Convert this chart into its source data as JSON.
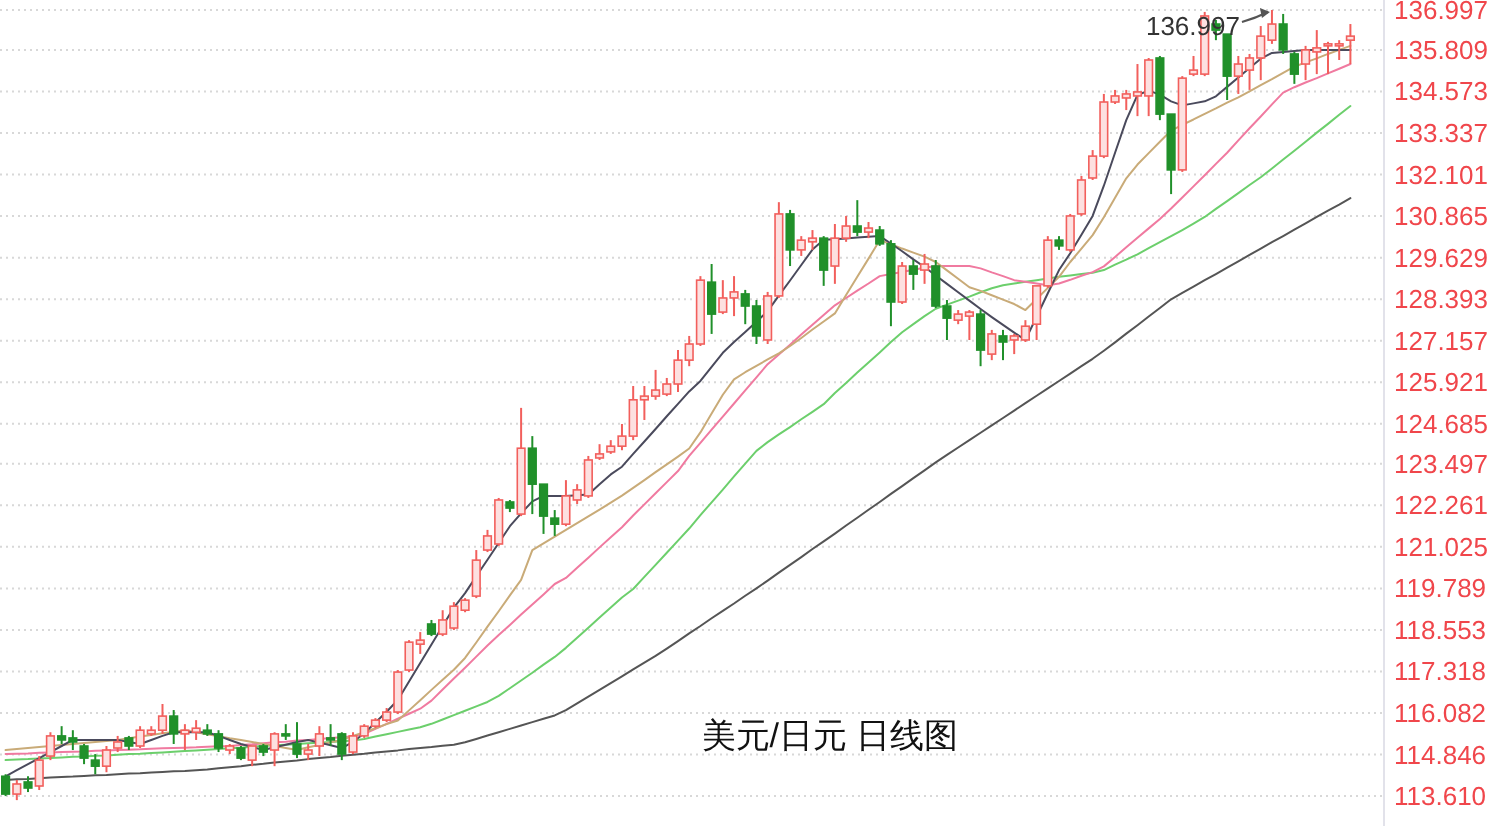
{
  "chart_data": {
    "type": "candlestick",
    "title": "美元/日元 日线图",
    "categories": [
      null,
      null,
      null,
      null,
      null,
      null,
      null,
      null,
      null,
      null,
      null,
      null,
      null,
      null,
      null,
      null,
      null,
      null,
      null,
      null,
      null,
      null,
      null,
      null,
      null,
      null,
      null,
      null,
      null,
      null,
      null,
      null,
      null,
      null,
      null,
      null,
      null,
      null,
      null,
      null,
      null,
      null,
      null,
      null,
      null,
      null,
      null,
      null,
      null,
      null,
      null,
      null,
      null,
      null,
      null,
      null,
      null,
      null,
      null,
      null,
      null,
      null,
      null,
      null,
      null,
      null,
      null,
      null,
      null,
      null,
      null,
      null,
      null,
      null,
      null,
      null,
      null,
      null,
      null,
      null,
      null,
      null,
      null,
      null,
      null,
      null,
      null,
      null,
      null,
      null,
      null,
      null,
      null,
      null,
      null,
      null,
      null,
      null,
      null,
      null,
      null,
      null,
      null,
      null,
      null,
      null,
      null,
      null,
      null,
      null,
      null,
      null,
      null,
      null,
      null,
      null,
      null,
      null,
      null,
      null,
      null
    ],
    "ohlc": [
      [
        114.2,
        114.26,
        113.61,
        113.67
      ],
      [
        113.67,
        114.09,
        113.49,
        113.97
      ],
      [
        114.03,
        114.2,
        113.73,
        113.85
      ],
      [
        113.91,
        114.8,
        113.79,
        114.68
      ],
      [
        114.8,
        115.51,
        114.68,
        115.4
      ],
      [
        115.4,
        115.69,
        115.16,
        115.28
      ],
      [
        115.34,
        115.57,
        114.98,
        115.22
      ],
      [
        115.1,
        115.16,
        114.56,
        114.74
      ],
      [
        114.68,
        114.86,
        114.26,
        114.5
      ],
      [
        114.5,
        115.1,
        114.32,
        114.98
      ],
      [
        115.04,
        115.4,
        114.92,
        115.22
      ],
      [
        115.34,
        115.4,
        114.98,
        115.1
      ],
      [
        115.1,
        115.69,
        115.04,
        115.57
      ],
      [
        115.46,
        115.69,
        115.4,
        115.57
      ],
      [
        115.57,
        116.35,
        115.46,
        115.99
      ],
      [
        115.99,
        116.17,
        115.16,
        115.46
      ],
      [
        115.46,
        115.75,
        114.98,
        115.57
      ],
      [
        115.51,
        115.87,
        115.28,
        115.63
      ],
      [
        115.57,
        115.75,
        115.4,
        115.46
      ],
      [
        115.46,
        115.57,
        114.92,
        115.04
      ],
      [
        114.98,
        115.16,
        114.86,
        115.1
      ],
      [
        115.04,
        115.1,
        114.68,
        114.74
      ],
      [
        114.68,
        115.1,
        114.5,
        115.1
      ],
      [
        115.1,
        115.16,
        114.8,
        114.92
      ],
      [
        114.98,
        115.51,
        114.5,
        115.46
      ],
      [
        115.46,
        115.75,
        115.28,
        115.4
      ],
      [
        115.16,
        115.81,
        114.74,
        114.86
      ],
      [
        114.86,
        115.16,
        114.68,
        114.98
      ],
      [
        115.1,
        115.69,
        114.8,
        115.46
      ],
      [
        115.34,
        115.75,
        115.1,
        115.28
      ],
      [
        115.46,
        115.51,
        114.68,
        114.86
      ],
      [
        114.92,
        115.51,
        114.86,
        115.4
      ],
      [
        115.4,
        115.75,
        115.34,
        115.69
      ],
      [
        115.69,
        115.93,
        115.63,
        115.87
      ],
      [
        115.87,
        116.23,
        115.81,
        116.11
      ],
      [
        116.11,
        117.36,
        116.05,
        117.3
      ],
      [
        117.36,
        118.25,
        117.3,
        118.19
      ],
      [
        118.13,
        118.49,
        117.84,
        118.25
      ],
      [
        118.73,
        118.85,
        118.37,
        118.43
      ],
      [
        118.43,
        119.14,
        118.37,
        118.85
      ],
      [
        118.61,
        119.38,
        118.55,
        119.26
      ],
      [
        119.14,
        119.5,
        119.08,
        119.44
      ],
      [
        119.56,
        120.93,
        119.5,
        120.63
      ],
      [
        120.93,
        121.53,
        120.87,
        121.35
      ],
      [
        121.11,
        122.48,
        121.05,
        122.42
      ],
      [
        122.36,
        122.42,
        122.06,
        122.18
      ],
      [
        122.0,
        125.16,
        121.94,
        123.96
      ],
      [
        123.96,
        124.32,
        122.0,
        122.89
      ],
      [
        122.89,
        122.89,
        121.41,
        121.94
      ],
      [
        121.88,
        122.12,
        121.35,
        121.7
      ],
      [
        121.7,
        123.01,
        121.64,
        122.54
      ],
      [
        122.42,
        122.89,
        122.3,
        122.72
      ],
      [
        122.54,
        123.73,
        122.48,
        123.61
      ],
      [
        123.67,
        124.08,
        123.61,
        123.79
      ],
      [
        123.85,
        124.2,
        123.79,
        124.02
      ],
      [
        124.02,
        124.68,
        123.9,
        124.32
      ],
      [
        124.32,
        125.81,
        124.2,
        125.4
      ],
      [
        125.4,
        125.81,
        124.8,
        125.51
      ],
      [
        125.51,
        126.29,
        125.4,
        125.69
      ],
      [
        125.57,
        126.05,
        125.51,
        125.87
      ],
      [
        125.87,
        126.88,
        125.63,
        126.58
      ],
      [
        126.58,
        127.3,
        126.4,
        127.06
      ],
      [
        127.06,
        129.08,
        127.0,
        128.96
      ],
      [
        128.9,
        129.44,
        127.36,
        127.95
      ],
      [
        128.01,
        128.96,
        127.95,
        128.43
      ],
      [
        128.43,
        129.08,
        127.89,
        128.61
      ],
      [
        128.55,
        128.67,
        127.65,
        128.19
      ],
      [
        128.19,
        128.37,
        127.06,
        127.3
      ],
      [
        127.18,
        128.61,
        127.06,
        128.49
      ],
      [
        128.49,
        131.28,
        128.43,
        130.93
      ],
      [
        130.93,
        131.05,
        129.38,
        129.86
      ],
      [
        129.86,
        130.27,
        129.68,
        130.15
      ],
      [
        130.1,
        130.45,
        129.86,
        130.21
      ],
      [
        130.21,
        130.27,
        128.79,
        129.26
      ],
      [
        129.38,
        130.63,
        128.85,
        130.21
      ],
      [
        130.21,
        130.87,
        130.1,
        130.57
      ],
      [
        130.57,
        131.34,
        130.27,
        130.39
      ],
      [
        130.39,
        130.69,
        130.21,
        130.51
      ],
      [
        130.45,
        130.57,
        129.98,
        130.04
      ],
      [
        130.04,
        130.15,
        127.59,
        128.31
      ],
      [
        128.31,
        129.5,
        128.25,
        129.38
      ],
      [
        129.38,
        129.56,
        128.67,
        129.14
      ],
      [
        129.26,
        129.74,
        128.85,
        129.44
      ],
      [
        129.38,
        129.56,
        128.13,
        128.19
      ],
      [
        128.19,
        128.37,
        127.18,
        127.83
      ],
      [
        127.77,
        128.07,
        127.65,
        127.95
      ],
      [
        127.89,
        128.07,
        127.18,
        128.01
      ],
      [
        127.95,
        128.07,
        126.4,
        126.88
      ],
      [
        126.76,
        127.48,
        126.58,
        127.36
      ],
      [
        127.3,
        127.48,
        126.58,
        127.12
      ],
      [
        127.18,
        127.36,
        126.76,
        127.3
      ],
      [
        127.18,
        127.77,
        127.12,
        127.59
      ],
      [
        127.65,
        128.79,
        127.18,
        128.79
      ],
      [
        128.79,
        130.27,
        128.73,
        130.15
      ],
      [
        130.15,
        130.27,
        129.86,
        129.98
      ],
      [
        129.86,
        130.93,
        129.8,
        130.87
      ],
      [
        130.93,
        132.06,
        130.87,
        131.94
      ],
      [
        132.0,
        132.83,
        131.94,
        132.65
      ],
      [
        132.65,
        134.5,
        132.59,
        134.26
      ],
      [
        134.26,
        134.62,
        134.2,
        134.44
      ],
      [
        134.38,
        134.62,
        134.02,
        134.5
      ],
      [
        134.44,
        135.39,
        133.84,
        134.56
      ],
      [
        134.44,
        135.57,
        133.84,
        135.51
      ],
      [
        135.57,
        135.63,
        133.72,
        133.9
      ],
      [
        133.9,
        133.9,
        131.52,
        132.24
      ],
      [
        132.24,
        135.03,
        132.18,
        134.97
      ],
      [
        135.09,
        135.63,
        135.03,
        135.21
      ],
      [
        135.09,
        136.94,
        135.03,
        136.82
      ],
      [
        136.58,
        136.7,
        136.1,
        136.4
      ],
      [
        136.28,
        136.28,
        134.32,
        135.03
      ],
      [
        135.03,
        135.63,
        134.5,
        135.39
      ],
      [
        135.21,
        135.69,
        134.62,
        135.57
      ],
      [
        135.57,
        136.52,
        134.91,
        136.22
      ],
      [
        136.1,
        136.997,
        135.99,
        136.58
      ],
      [
        136.58,
        136.88,
        135.69,
        135.81
      ],
      [
        135.69,
        135.75,
        134.8,
        135.09
      ],
      [
        135.39,
        135.93,
        134.91,
        135.81
      ],
      [
        135.75,
        136.4,
        135.09,
        135.87
      ],
      [
        135.93,
        136.05,
        135.09,
        135.99
      ],
      [
        135.93,
        136.1,
        135.51,
        135.99
      ],
      [
        136.1,
        136.58,
        135.39,
        136.22
      ]
    ],
    "colors": [
      "#20902a",
      "#f25f5c",
      "#20902a",
      "#f25f5c",
      "#f25f5c",
      "#20902a",
      "#20902a",
      "#20902a",
      "#20902a",
      "#f25f5c",
      "#f25f5c",
      "#20902a",
      "#f25f5c",
      "#f25f5c",
      "#f25f5c",
      "#20902a",
      "#f25f5c",
      "#f25f5c",
      "#20902a",
      "#20902a",
      "#f25f5c",
      "#20902a",
      "#f25f5c",
      "#20902a",
      "#f25f5c",
      "#20902a",
      "#20902a",
      "#f25f5c",
      "#f25f5c",
      "#20902a",
      "#20902a",
      "#f25f5c",
      "#f25f5c",
      "#f25f5c",
      "#f25f5c",
      "#f25f5c",
      "#f25f5c",
      "#f25f5c",
      "#20902a",
      "#f25f5c",
      "#f25f5c",
      "#f25f5c",
      "#f25f5c",
      "#f25f5c",
      "#f25f5c",
      "#20902a",
      "#f25f5c",
      "#20902a",
      "#20902a",
      "#20902a",
      "#f25f5c",
      "#f25f5c",
      "#f25f5c",
      "#f25f5c",
      "#f25f5c",
      "#f25f5c",
      "#f25f5c",
      "#f25f5c",
      "#f25f5c",
      "#f25f5c",
      "#f25f5c",
      "#f25f5c",
      "#f25f5c",
      "#20902a",
      "#f25f5c",
      "#f25f5c",
      "#20902a",
      "#20902a",
      "#f25f5c",
      "#f25f5c",
      "#20902a",
      "#f25f5c",
      "#f25f5c",
      "#20902a",
      "#f25f5c",
      "#f25f5c",
      "#20902a",
      "#f25f5c",
      "#20902a",
      "#20902a",
      "#f25f5c",
      "#20902a",
      "#f25f5c",
      "#20902a",
      "#20902a",
      "#f25f5c",
      "#f25f5c",
      "#20902a",
      "#f25f5c",
      "#20902a",
      "#f25f5c",
      "#f25f5c",
      "#f25f5c",
      "#f25f5c",
      "#20902a",
      "#f25f5c",
      "#f25f5c",
      "#f25f5c",
      "#f25f5c",
      "#f25f5c",
      "#f25f5c",
      "#f25f5c",
      "#f25f5c",
      "#20902a",
      "#20902a",
      "#f25f5c",
      "#f25f5c",
      "#f25f5c",
      "#20902a",
      "#20902a",
      "#f25f5c",
      "#f25f5c",
      "#f25f5c",
      "#f25f5c",
      "#20902a",
      "#20902a",
      "#f25f5c",
      "#f25f5c",
      "#f25f5c",
      "#f25f5c",
      "#f25f5c"
    ],
    "series": [
      {
        "type": "line",
        "color": "#555555",
        "values": [
          114.09,
          114.11,
          114.12,
          114.14,
          114.16,
          114.18,
          114.19,
          114.21,
          114.23,
          114.24,
          114.26,
          114.28,
          114.29,
          114.31,
          114.33,
          114.35,
          114.36,
          114.38,
          114.4,
          114.44,
          114.47,
          114.5,
          114.54,
          114.57,
          114.61,
          114.64,
          114.67,
          114.71,
          114.74,
          114.77,
          114.81,
          114.84,
          114.87,
          114.91,
          114.94,
          114.97,
          115.01,
          115.04,
          115.07,
          115.11,
          115.14,
          115.21,
          115.31,
          115.41,
          115.51,
          115.61,
          115.71,
          115.81,
          115.91,
          116.01,
          116.17,
          116.37,
          116.57,
          116.77,
          116.97,
          117.17,
          117.38,
          117.58,
          117.78,
          118.0,
          118.22,
          118.45,
          118.67,
          118.9,
          119.12,
          119.34,
          119.57,
          119.79,
          120.02,
          120.26,
          120.49,
          120.72,
          120.96,
          121.19,
          121.42,
          121.66,
          121.89,
          122.13,
          122.36,
          122.6,
          122.83,
          123.07,
          123.3,
          123.54,
          123.76,
          123.98,
          124.2,
          124.42,
          124.64,
          124.86,
          125.08,
          125.3,
          125.52,
          125.74,
          125.96,
          126.18,
          126.4,
          126.62,
          126.86,
          127.11,
          127.37,
          127.62,
          127.88,
          128.13,
          128.39,
          128.58,
          128.77,
          128.96,
          129.14,
          129.33,
          129.52,
          129.71,
          129.9,
          130.09,
          130.27,
          130.46,
          130.65,
          130.84,
          131.03,
          131.21,
          131.4
        ]
      },
      {
        "type": "line",
        "color": "#6ccf6c",
        "values": [
          114.68,
          114.7,
          114.71,
          114.73,
          114.74,
          114.76,
          114.78,
          114.79,
          114.81,
          114.82,
          114.84,
          114.86,
          114.87,
          114.89,
          114.91,
          114.93,
          114.95,
          114.97,
          114.99,
          115.01,
          115.03,
          115.05,
          115.08,
          115.1,
          115.12,
          115.14,
          115.16,
          115.18,
          115.2,
          115.22,
          115.24,
          115.26,
          115.31,
          115.38,
          115.45,
          115.52,
          115.59,
          115.66,
          115.76,
          115.89,
          116.02,
          116.15,
          116.28,
          116.41,
          116.59,
          116.82,
          117.05,
          117.28,
          117.52,
          117.75,
          118.02,
          118.32,
          118.62,
          118.92,
          119.22,
          119.52,
          119.77,
          120.13,
          120.49,
          120.85,
          121.21,
          121.57,
          121.97,
          122.35,
          122.73,
          123.12,
          123.5,
          123.88,
          124.14,
          124.37,
          124.59,
          124.82,
          125.04,
          125.27,
          125.6,
          125.9,
          126.21,
          126.51,
          126.81,
          127.12,
          127.41,
          127.65,
          127.89,
          128.11,
          128.23,
          128.35,
          128.47,
          128.6,
          128.72,
          128.81,
          128.86,
          128.91,
          128.96,
          129.01,
          129.06,
          129.1,
          129.14,
          129.18,
          129.26,
          129.42,
          129.57,
          129.73,
          129.91,
          130.09,
          130.27,
          130.45,
          130.64,
          130.84,
          131.08,
          131.31,
          131.55,
          131.79,
          132.02,
          132.28,
          132.55,
          132.81,
          133.08,
          133.35,
          133.61,
          133.88,
          134.14
        ]
      },
      {
        "type": "line",
        "color": "#f07aa0",
        "values": [
          114.86,
          114.87,
          114.88,
          114.9,
          114.91,
          114.92,
          114.93,
          114.94,
          114.96,
          114.97,
          114.98,
          114.99,
          115.0,
          115.02,
          115.03,
          115.04,
          115.05,
          115.06,
          115.08,
          115.09,
          115.1,
          115.13,
          115.15,
          115.18,
          115.21,
          115.23,
          115.26,
          115.28,
          115.31,
          115.34,
          115.36,
          115.39,
          115.46,
          115.61,
          115.76,
          115.91,
          116.06,
          116.21,
          116.45,
          116.78,
          117.11,
          117.43,
          117.76,
          118.09,
          118.4,
          118.7,
          119.01,
          119.31,
          119.61,
          119.92,
          120.1,
          120.4,
          120.7,
          121.01,
          121.31,
          121.61,
          121.96,
          122.29,
          122.62,
          122.95,
          123.28,
          123.73,
          124.12,
          124.51,
          124.9,
          125.29,
          125.68,
          126.07,
          126.46,
          126.75,
          127.04,
          127.34,
          127.63,
          127.92,
          128.21,
          128.43,
          128.65,
          128.86,
          129.08,
          129.14,
          129.2,
          129.27,
          129.33,
          129.38,
          129.38,
          129.38,
          129.38,
          129.31,
          129.19,
          129.08,
          128.96,
          128.91,
          128.86,
          128.81,
          128.86,
          128.97,
          129.09,
          129.2,
          129.37,
          129.65,
          129.94,
          130.22,
          130.5,
          130.78,
          131.09,
          131.42,
          131.75,
          132.08,
          132.42,
          132.75,
          133.12,
          133.48,
          133.83,
          134.19,
          134.54,
          134.7,
          134.84,
          134.97,
          135.11,
          135.25,
          135.39
        ]
      },
      {
        "type": "line",
        "color": "#c9ab78",
        "values": [
          114.98,
          115.01,
          115.04,
          115.07,
          115.1,
          115.13,
          115.16,
          115.19,
          115.22,
          115.25,
          115.28,
          115.33,
          115.38,
          115.43,
          115.48,
          115.52,
          115.57,
          115.51,
          115.45,
          115.39,
          115.33,
          115.28,
          115.22,
          115.16,
          115.1,
          115.04,
          114.98,
          115.06,
          115.13,
          115.21,
          115.28,
          115.4,
          115.51,
          115.63,
          115.75,
          115.86,
          116.16,
          116.46,
          116.77,
          117.07,
          117.37,
          117.72,
          118.18,
          118.65,
          119.11,
          119.58,
          120.04,
          120.93,
          121.13,
          121.33,
          121.53,
          121.73,
          121.93,
          122.13,
          122.34,
          122.55,
          122.78,
          123.01,
          123.25,
          123.48,
          123.71,
          123.95,
          124.43,
          124.99,
          125.55,
          126.01,
          126.22,
          126.41,
          126.6,
          126.78,
          127.0,
          127.24,
          127.49,
          127.73,
          127.97,
          128.52,
          129.06,
          129.6,
          130.15,
          130.03,
          129.9,
          129.78,
          129.66,
          129.5,
          129.25,
          129.0,
          128.75,
          128.64,
          128.51,
          128.38,
          128.25,
          128.07,
          128.4,
          128.73,
          129.06,
          129.5,
          129.9,
          130.3,
          130.83,
          131.41,
          131.99,
          132.4,
          132.74,
          133.08,
          133.41,
          133.58,
          133.74,
          133.91,
          134.07,
          134.24,
          134.4,
          134.58,
          134.76,
          134.94,
          135.13,
          135.31,
          135.44,
          135.56,
          135.69,
          135.81,
          135.93
        ]
      },
      {
        "type": "line",
        "color": "#4a4a5c",
        "values": [
          114.2,
          114.38,
          114.56,
          114.74,
          114.92,
          115.1,
          115.28,
          115.28,
          115.28,
          115.28,
          115.28,
          115.22,
          115.16,
          115.28,
          115.4,
          115.51,
          115.51,
          115.51,
          115.51,
          115.4,
          115.28,
          115.16,
          115.07,
          114.98,
          115.06,
          115.14,
          115.22,
          115.28,
          115.2,
          115.12,
          115.04,
          115.22,
          115.48,
          115.8,
          116.12,
          116.47,
          117.02,
          117.57,
          118.12,
          118.67,
          119.22,
          119.65,
          120.15,
          120.64,
          121.14,
          121.64,
          122.02,
          122.38,
          122.54,
          122.54,
          122.54,
          122.56,
          122.58,
          122.89,
          123.18,
          123.41,
          123.79,
          124.16,
          124.53,
          124.91,
          125.28,
          125.65,
          125.96,
          126.38,
          126.8,
          127.12,
          127.42,
          127.72,
          128.04,
          128.5,
          128.95,
          129.41,
          129.87,
          130.16,
          130.18,
          130.2,
          130.23,
          130.25,
          130.27,
          130.05,
          129.82,
          129.58,
          129.35,
          129.1,
          128.85,
          128.6,
          128.35,
          128.1,
          127.86,
          127.63,
          127.4,
          127.18,
          127.87,
          128.57,
          129.26,
          129.76,
          130.31,
          130.87,
          131.77,
          132.75,
          133.72,
          134.47,
          134.6,
          134.48,
          134.28,
          134.16,
          134.22,
          134.28,
          134.43,
          134.71,
          134.99,
          135.27,
          135.55,
          135.72,
          135.75,
          135.78,
          135.81,
          135.81,
          135.81,
          135.81,
          135.81
        ]
      }
    ],
    "ylim": [
      112.72,
      137.295
    ],
    "yticks": [
      136.997,
      135.809,
      134.573,
      133.337,
      132.101,
      130.865,
      129.629,
      128.393,
      127.157,
      125.921,
      124.685,
      123.497,
      122.261,
      121.025,
      119.789,
      118.553,
      117.318,
      116.082,
      114.846,
      {
        "value": 113.61,
        "label": "113.610"
      }
    ],
    "grid": "y",
    "annotations": [
      {
        "text": "136.997",
        "y": 136.997
      }
    ]
  }
}
